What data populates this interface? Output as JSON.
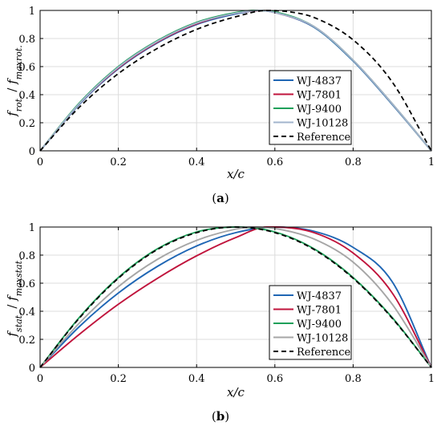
{
  "chart_data": [
    {
      "panel": "a",
      "caption": "(a)",
      "type": "line",
      "xlabel": "x/c",
      "ylabel": "f_rot. / f_maxrot.",
      "xlim": [
        0,
        1
      ],
      "ylim": [
        0,
        1
      ],
      "xticks": [
        "0",
        "0.2",
        "0.4",
        "0.6",
        "0.8",
        "1"
      ],
      "yticks": [
        "0",
        "0.2",
        "0.4",
        "0.6",
        "0.8",
        "1"
      ],
      "grid": true,
      "legend_position": "bottom-right",
      "series": [
        {
          "name": "WJ-4837",
          "color": "#1f66b4",
          "dashed": false,
          "x": [
            0,
            0.1,
            0.2,
            0.3,
            0.4,
            0.5,
            0.56,
            0.6,
            0.7,
            0.8,
            0.9,
            1.0
          ],
          "y": [
            0,
            0.33,
            0.585,
            0.77,
            0.9,
            0.975,
            1.0,
            0.985,
            0.88,
            0.64,
            0.33,
            0
          ]
        },
        {
          "name": "WJ-7801",
          "color": "#c0143c",
          "dashed": false,
          "x": [
            0,
            0.1,
            0.2,
            0.3,
            0.4,
            0.5,
            0.57,
            0.6,
            0.7,
            0.8,
            0.9,
            1.0
          ],
          "y": [
            0,
            0.335,
            0.59,
            0.775,
            0.905,
            0.98,
            1.0,
            0.985,
            0.885,
            0.645,
            0.335,
            0
          ]
        },
        {
          "name": "WJ-9400",
          "color": "#1fa05a",
          "dashed": false,
          "x": [
            0,
            0.1,
            0.2,
            0.3,
            0.4,
            0.5,
            0.55,
            0.6,
            0.7,
            0.8,
            0.9,
            1.0
          ],
          "y": [
            0,
            0.34,
            0.6,
            0.785,
            0.915,
            0.985,
            1.0,
            0.99,
            0.885,
            0.645,
            0.335,
            0
          ]
        },
        {
          "name": "WJ-10128",
          "color": "#a2b4cc",
          "dashed": false,
          "x": [
            0,
            0.1,
            0.2,
            0.3,
            0.4,
            0.5,
            0.56,
            0.6,
            0.7,
            0.8,
            0.9,
            1.0
          ],
          "y": [
            0,
            0.335,
            0.595,
            0.78,
            0.91,
            0.98,
            1.0,
            0.985,
            0.885,
            0.645,
            0.335,
            0
          ]
        },
        {
          "name": "Reference",
          "color": "#000000",
          "dashed": true,
          "x": [
            0,
            0.1,
            0.2,
            0.3,
            0.4,
            0.5,
            0.58,
            0.65,
            0.7,
            0.8,
            0.9,
            1.0
          ],
          "y": [
            0,
            0.31,
            0.55,
            0.73,
            0.865,
            0.955,
            1.0,
            0.985,
            0.95,
            0.79,
            0.49,
            0
          ]
        }
      ]
    },
    {
      "panel": "b",
      "caption": "(b)",
      "type": "line",
      "xlabel": "x/c",
      "ylabel": "f_stat. / f_maxstat.",
      "xlim": [
        0,
        1
      ],
      "ylim": [
        0,
        1
      ],
      "xticks": [
        "0",
        "0.2",
        "0.4",
        "0.6",
        "0.8",
        "1"
      ],
      "yticks": [
        "0",
        "0.2",
        "0.4",
        "0.6",
        "0.8",
        "1"
      ],
      "grid": true,
      "legend_position": "bottom-right",
      "series": [
        {
          "name": "WJ-4837",
          "color": "#1f66b4",
          "dashed": false,
          "x": [
            0,
            0.1,
            0.2,
            0.3,
            0.4,
            0.5,
            0.6,
            0.7,
            0.8,
            0.9,
            1.0
          ],
          "y": [
            0,
            0.29,
            0.53,
            0.72,
            0.865,
            0.96,
            1.0,
            0.97,
            0.855,
            0.61,
            0
          ]
        },
        {
          "name": "WJ-7801",
          "color": "#c0143c",
          "dashed": false,
          "x": [
            0,
            0.1,
            0.2,
            0.3,
            0.4,
            0.5,
            0.58,
            0.6,
            0.7,
            0.8,
            0.9,
            1.0
          ],
          "y": [
            0,
            0.235,
            0.45,
            0.635,
            0.795,
            0.925,
            1.0,
            1.0,
            0.96,
            0.815,
            0.53,
            0
          ]
        },
        {
          "name": "WJ-9400",
          "color": "#1fa05a",
          "dashed": false,
          "x": [
            0,
            0.1,
            0.2,
            0.3,
            0.4,
            0.5,
            0.6,
            0.7,
            0.8,
            0.9,
            1.0
          ],
          "y": [
            0,
            0.355,
            0.64,
            0.845,
            0.965,
            1.0,
            0.965,
            0.845,
            0.64,
            0.355,
            0
          ]
        },
        {
          "name": "WJ-10128",
          "color": "#a6a6a6",
          "dashed": false,
          "x": [
            0,
            0.1,
            0.2,
            0.3,
            0.4,
            0.5,
            0.54,
            0.6,
            0.7,
            0.8,
            0.9,
            1.0
          ],
          "y": [
            0,
            0.315,
            0.575,
            0.77,
            0.905,
            0.985,
            1.0,
            0.99,
            0.915,
            0.75,
            0.45,
            0
          ]
        },
        {
          "name": "Reference",
          "color": "#000000",
          "dashed": true,
          "x": [
            0,
            0.1,
            0.2,
            0.3,
            0.4,
            0.5,
            0.6,
            0.7,
            0.8,
            0.9,
            1.0
          ],
          "y": [
            0,
            0.35,
            0.635,
            0.84,
            0.96,
            1.0,
            0.96,
            0.84,
            0.635,
            0.35,
            0
          ]
        }
      ]
    }
  ]
}
